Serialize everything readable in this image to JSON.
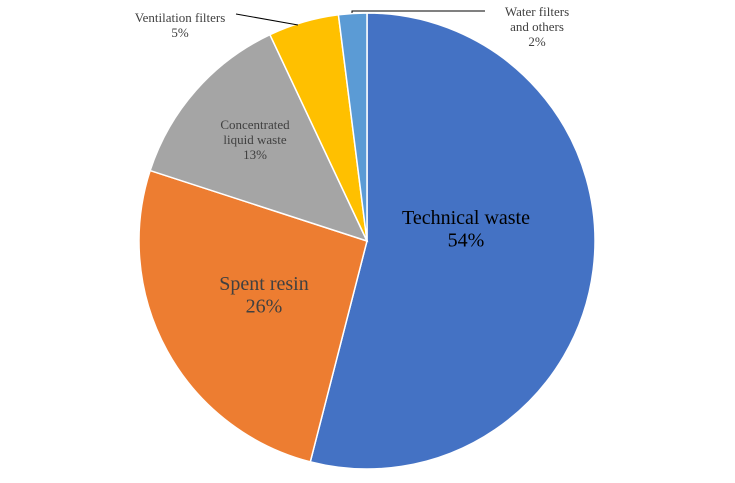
{
  "chart_data": {
    "type": "pie",
    "categories": [
      "Technical waste",
      "Spent resin",
      "Concentrated liquid waste",
      "Ventilation filters",
      "Water filters and others"
    ],
    "values": [
      54,
      26,
      13,
      5,
      2
    ],
    "value_labels": [
      "54%",
      "26%",
      "13%",
      "5%",
      "2%"
    ],
    "colors": [
      "#4472c4",
      "#ed7d31",
      "#a5a5a5",
      "#ffc000",
      "#5b9bd5"
    ]
  }
}
